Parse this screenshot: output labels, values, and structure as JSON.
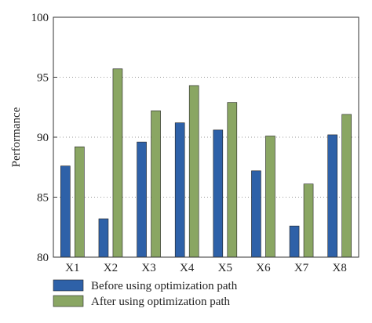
{
  "chart_data": {
    "type": "bar",
    "categories": [
      "X1",
      "X2",
      "X3",
      "X4",
      "X5",
      "X6",
      "X7",
      "X8"
    ],
    "series": [
      {
        "name": "Before using optimization path",
        "color": "#2e61a8",
        "values": [
          87.6,
          83.2,
          89.6,
          91.2,
          90.6,
          87.2,
          82.6,
          90.2
        ]
      },
      {
        "name": "After using optimization path",
        "color": "#8aa663",
        "values": [
          89.2,
          95.7,
          92.2,
          94.3,
          92.9,
          90.1,
          86.1,
          91.9
        ]
      }
    ],
    "title": "",
    "xlabel": "",
    "ylabel": "Performance",
    "ylim": [
      80,
      100
    ],
    "yticks": [
      "80",
      "85",
      "90",
      "95",
      "100"
    ],
    "grid": "dotted-horizontal",
    "legend_position": "bottom"
  }
}
